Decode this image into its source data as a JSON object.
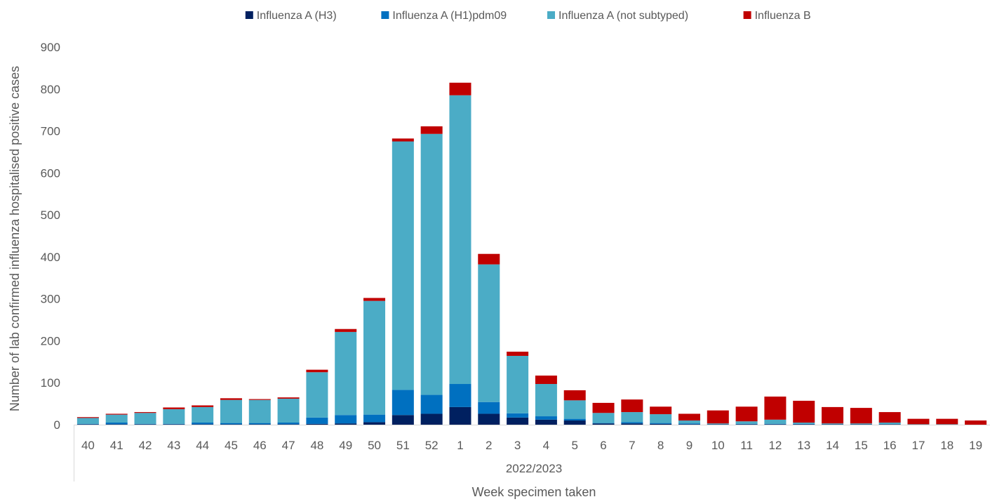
{
  "chart_data": {
    "type": "bar",
    "stacked": true,
    "title": "",
    "xlabel": "Week specimen taken",
    "xgroup_label": "2022/2023",
    "ylabel": "Number of lab confirmed influenza hospitalised positive cases",
    "ylim": [
      0,
      900
    ],
    "yticks": [
      0,
      100,
      200,
      300,
      400,
      500,
      600,
      700,
      800,
      900
    ],
    "grid": false,
    "legend_position": "top",
    "categories": [
      "40",
      "41",
      "42",
      "43",
      "44",
      "45",
      "46",
      "47",
      "48",
      "49",
      "50",
      "51",
      "52",
      "1",
      "2",
      "3",
      "4",
      "5",
      "6",
      "7",
      "8",
      "9",
      "10",
      "11",
      "12",
      "13",
      "14",
      "15",
      "16",
      "17",
      "18",
      "19"
    ],
    "series": [
      {
        "name": "Influenza A (H3)",
        "color": "#002060",
        "values": [
          1,
          1,
          1,
          1,
          1,
          1,
          1,
          1,
          2,
          3,
          6,
          23,
          26,
          42,
          26,
          17,
          12,
          10,
          3,
          3,
          2,
          1,
          1,
          1,
          1,
          1,
          1,
          1,
          1,
          0,
          0,
          0
        ]
      },
      {
        "name": "Influenza A (H1)pdm09",
        "color": "#0070C0",
        "values": [
          1,
          4,
          1,
          1,
          4,
          3,
          3,
          4,
          15,
          20,
          18,
          60,
          45,
          55,
          28,
          10,
          8,
          4,
          1,
          3,
          2,
          2,
          0,
          1,
          1,
          1,
          0,
          0,
          0,
          0,
          0,
          0
        ]
      },
      {
        "name": "Influenza A (not subtyped)",
        "color": "#4BACC6",
        "values": [
          14,
          19,
          26,
          35,
          37,
          55,
          55,
          57,
          108,
          198,
          271,
          592,
          622,
          688,
          328,
          137,
          77,
          44,
          24,
          24,
          21,
          7,
          2,
          6,
          10,
          3,
          2,
          2,
          4,
          1,
          1,
          0
        ]
      },
      {
        "name": "Influenza B",
        "color": "#C00000",
        "values": [
          2,
          2,
          2,
          4,
          4,
          4,
          2,
          3,
          6,
          7,
          7,
          7,
          18,
          30,
          25,
          10,
          20,
          24,
          24,
          30,
          18,
          16,
          31,
          35,
          55,
          52,
          39,
          37,
          25,
          13,
          13,
          10
        ]
      }
    ]
  }
}
